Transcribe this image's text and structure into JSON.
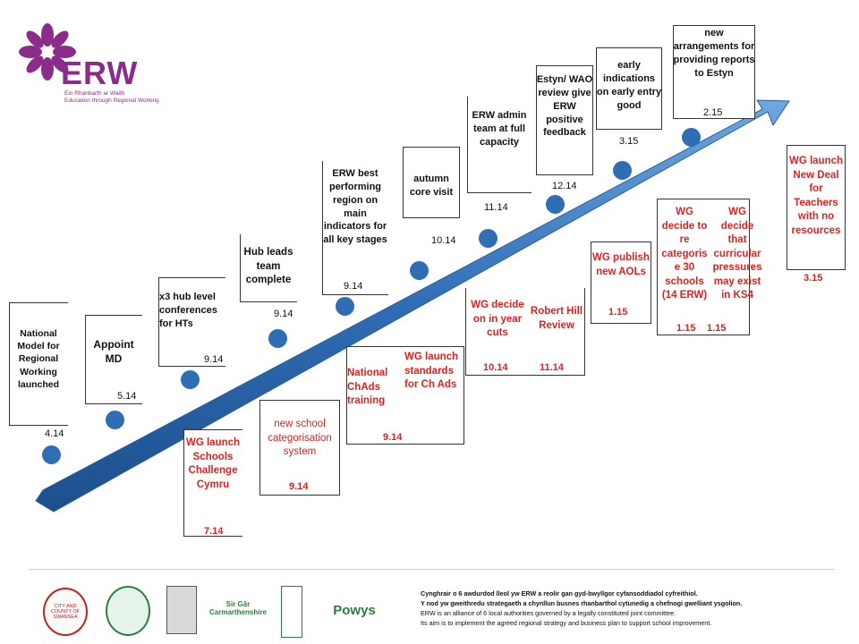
{
  "brand": {
    "name": "ERW",
    "tagline_cy": "Ein Rhanbarth ar Waith",
    "tagline_en": "Education through Regional Working",
    "colors": {
      "purple": "#8b2c8b",
      "arrow": "#2f6db5",
      "red": "#e02020"
    }
  },
  "timeline": [
    {
      "label": "National Model for Regional Working launched",
      "date": "4.14",
      "color": "black"
    },
    {
      "label": "Appoint MD",
      "date": "5.14",
      "color": "black"
    },
    {
      "label": "x3 hub level conferences for HTs",
      "date": "9.14",
      "color": "black"
    },
    {
      "label": "Hub leads team complete",
      "date": "9.14",
      "color": "black"
    },
    {
      "label": "ERW best performing region on main indicators for all key stages",
      "date": "9.14",
      "color": "black"
    },
    {
      "label": "autumn core visit",
      "date": "10.14",
      "color": "black"
    },
    {
      "label": "ERW admin team at full capacity",
      "date": "11.14",
      "color": "black"
    },
    {
      "label": "Estyn/ WAO review give ERW positive feedback",
      "date": "12.14",
      "color": "black"
    },
    {
      "label": "early indications on early entry good",
      "date": "3.15",
      "color": "black"
    },
    {
      "label": "new arrangements for providing reports to Estyn",
      "date": "2.15",
      "color": "black"
    }
  ],
  "wg_events": [
    {
      "label": "WG launch Schools Challenge Cymru",
      "date": "7.14"
    },
    {
      "label": "new school categorisation system",
      "date": "9.14"
    },
    {
      "label": "National ChAds training",
      "date": "9.14"
    },
    {
      "label": "WG launch standards for Ch Ads",
      "date": ""
    },
    {
      "label": "WG decide on in year cuts",
      "date": "10.14"
    },
    {
      "label": "Robert Hill Review",
      "date": "11.14"
    },
    {
      "label": "WG publish new AOLs",
      "date": "1.15"
    },
    {
      "label": "WG decide to re categoris e 30 schools (14 ERW)",
      "date": "1.15"
    },
    {
      "label": "WG decide that curricular pressures may exist in KS4",
      "date": "1.15"
    },
    {
      "label": "WG launch New Deal for Teachers with no resources",
      "date": "3.15"
    }
  ],
  "footer": {
    "line1": "Cynghrair o 6 awdurdod lleol yw ERW a reolir gan gyd-bwyllgor cyfansoddiadol cyfreithiol.",
    "line2": "Y nod yw gweithredu strategaeth a chynllun busnes rhanbarthol cytunedig a chefnogi gwelliant ysgolion.",
    "line3": "ERW is an alliance of 6 local authorities governed by a legally constituted joint committee.",
    "line4": "Its aim is to implement the agreed regional strategy and business plan to support school improvement.",
    "logos": [
      {
        "name": "swansea-logo",
        "text": "CITY AND COUNTY OF SWANSEA"
      },
      {
        "name": "neath-port-talbot-logo",
        "text": ""
      },
      {
        "name": "pembrokeshire-logo",
        "text": ""
      },
      {
        "name": "carmarthenshire-logo",
        "text": "Sir Gâr Carmarthenshire"
      },
      {
        "name": "ceredigion-logo",
        "text": ""
      },
      {
        "name": "powys-logo",
        "text": "Powys"
      }
    ]
  }
}
